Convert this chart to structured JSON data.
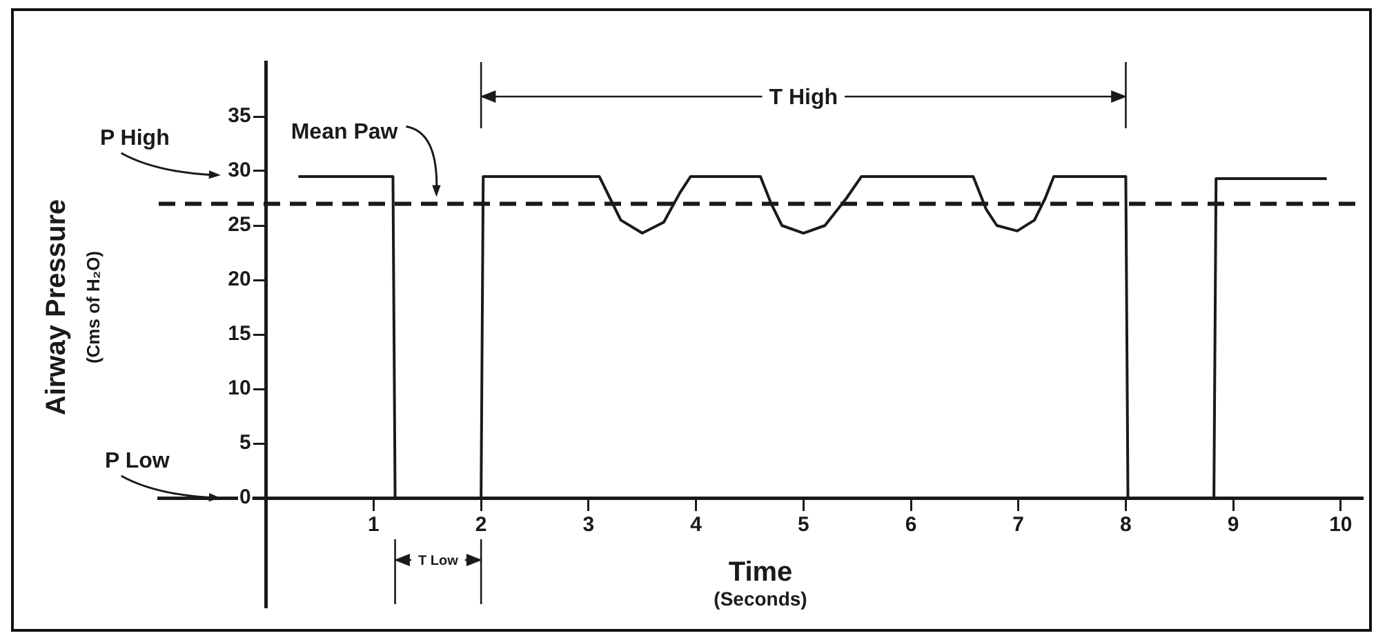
{
  "chart_data": {
    "type": "line",
    "xlabel": "Time (Seconds)",
    "ylabel": "Airway Pressure (Cms of H₂O)",
    "xlim": [
      -1,
      10.2
    ],
    "ylim": [
      -10,
      40
    ],
    "xticks": [
      1,
      2,
      3,
      4,
      5,
      6,
      7,
      8,
      9,
      10
    ],
    "yticks": [
      0,
      5,
      10,
      15,
      20,
      25,
      30,
      35
    ],
    "series": [
      {
        "color": "#1a1a1a",
        "x": [
          0.3,
          1.18,
          1.2,
          2.0,
          2.02,
          3.1,
          3.2,
          3.3,
          3.5,
          3.7,
          3.85,
          3.95,
          4.6,
          4.7,
          4.8,
          5.0,
          5.2,
          5.4,
          5.54,
          6.58,
          6.7,
          6.8,
          6.99,
          7.15,
          7.25,
          7.33,
          8.0,
          8.02,
          8.82,
          8.84,
          9.87
        ],
        "values": [
          29.5,
          29.5,
          0,
          0,
          29.5,
          29.5,
          27.5,
          25.5,
          24.3,
          25.3,
          28,
          29.5,
          29.5,
          27,
          25,
          24.3,
          25,
          27.5,
          29.5,
          29.5,
          26.5,
          25,
          24.5,
          25.5,
          27.5,
          29.5,
          29.5,
          0,
          0,
          29.3,
          29.3
        ]
      }
    ],
    "ref_lines": [
      {
        "axis": "y",
        "value": 27,
        "label": "Mean Paw",
        "line_style": "dashed",
        "color": "#1a1a1a"
      }
    ],
    "annotations": [
      "P High",
      "P Low",
      "T High",
      "T Low"
    ],
    "grid": false,
    "legend": false,
    "marker": "none",
    "line_style": "solid"
  }
}
